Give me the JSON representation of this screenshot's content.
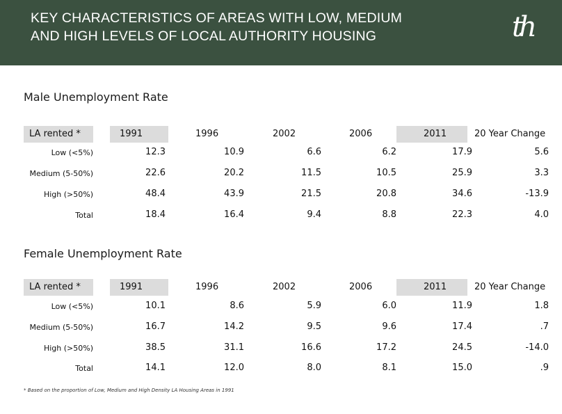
{
  "header": {
    "title_line1": "KEY CHARACTERISTICS OF AREAS WITH LOW, MEDIUM",
    "title_line2": "AND HIGH LEVELS OF LOCAL AUTHORITY HOUSING",
    "logo": "th",
    "background": "#3b5140"
  },
  "columns": {
    "la": "LA rented *",
    "y1991": "1991",
    "y1996": "1996",
    "y2002": "2002",
    "y2006": "2006",
    "y2011": "2011",
    "change": "20 Year  Change"
  },
  "male": {
    "title": "Male Unemployment Rate",
    "rows": [
      {
        "label": "Low (<5%)",
        "v": [
          "12.3",
          "10.9",
          "6.6",
          "6.2",
          "17.9",
          "5.6"
        ]
      },
      {
        "label": "Medium (5-50%)",
        "v": [
          "22.6",
          "20.2",
          "11.5",
          "10.5",
          "25.9",
          "3.3"
        ]
      },
      {
        "label": "High (>50%)",
        "v": [
          "48.4",
          "43.9",
          "21.5",
          "20.8",
          "34.6",
          "-13.9"
        ]
      },
      {
        "label": "Total",
        "v": [
          "18.4",
          "16.4",
          "9.4",
          "8.8",
          "22.3",
          "4.0"
        ]
      }
    ]
  },
  "female": {
    "title": "Female Unemployment Rate",
    "rows": [
      {
        "label": "Low (<5%)",
        "v": [
          "10.1",
          "8.6",
          "5.9",
          "6.0",
          "11.9",
          "1.8"
        ]
      },
      {
        "label": "Medium (5-50%)",
        "v": [
          "16.7",
          "14.2",
          "9.5",
          "9.6",
          "17.4",
          ".7"
        ]
      },
      {
        "label": "High (>50%)",
        "v": [
          "38.5",
          "31.1",
          "16.6",
          "17.2",
          "24.5",
          "-14.0"
        ]
      },
      {
        "label": "Total",
        "v": [
          "14.1",
          "12.0",
          "8.0",
          "8.1",
          "15.0",
          ".9"
        ]
      }
    ]
  },
  "footnote": "* Based on the proportion of Low, Medium and High Density LA Housing Areas in 1991"
}
